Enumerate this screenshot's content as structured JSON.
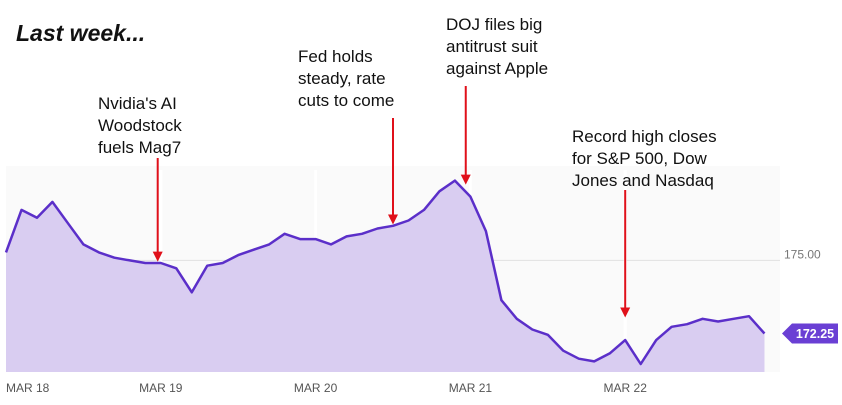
{
  "chart_data": {
    "type": "area",
    "title": "Last week...",
    "x_ticks": [
      "MAR 18",
      "MAR 19",
      "MAR 20",
      "MAR 21",
      "MAR 22"
    ],
    "y_ticks": [
      175.0
    ],
    "y_tick_labels": [
      "175.00"
    ],
    "ylim": [
      170.8,
      178.4
    ],
    "grid": true,
    "last_value": 172.25,
    "last_value_label": "172.25",
    "colors": {
      "line": "#5b2fc9",
      "fill": "#d9cdf1",
      "badge": "#6a3fd4",
      "annotation_arrow": "#e0101a",
      "grid": "#e1e1e1"
    },
    "series": [
      {
        "x": [
          0,
          0.1,
          0.2,
          0.3,
          0.4,
          0.5,
          0.6,
          0.7,
          0.8,
          0.9,
          1.0,
          1.1,
          1.2,
          1.3,
          1.4,
          1.5,
          1.6,
          1.7,
          1.8,
          1.9,
          2.0,
          2.1,
          2.2,
          2.3,
          2.4,
          2.5,
          2.6,
          2.7,
          2.8,
          2.9,
          3.0,
          3.1,
          3.2,
          3.3,
          3.4,
          3.5,
          3.6,
          3.7,
          3.8,
          3.9,
          4.0,
          4.1,
          4.2,
          4.3,
          4.4,
          4.5,
          4.6,
          4.7,
          4.8,
          4.9
        ],
        "y": [
          175.3,
          176.9,
          176.6,
          177.2,
          176.4,
          175.6,
          175.3,
          175.1,
          175.0,
          174.9,
          174.9,
          174.7,
          173.8,
          174.8,
          174.9,
          175.2,
          175.4,
          175.6,
          176.0,
          175.8,
          175.8,
          175.6,
          175.9,
          176.0,
          176.2,
          176.3,
          176.5,
          176.9,
          177.6,
          178.0,
          177.4,
          176.1,
          173.5,
          172.8,
          172.4,
          172.2,
          171.6,
          171.3,
          171.2,
          171.5,
          172.0,
          171.1,
          172.0,
          172.5,
          172.6,
          172.8,
          172.7,
          172.8,
          172.9,
          172.25
        ]
      }
    ],
    "annotations": [
      {
        "lines": [
          "Nvidia's AI",
          "Woodstock",
          "fuels Mag7"
        ],
        "x": 0.98,
        "y": 174.8
      },
      {
        "lines": [
          "Fed holds",
          "steady, rate",
          "cuts to come"
        ],
        "x": 2.5,
        "y": 176.2
      },
      {
        "lines": [
          "DOJ files big",
          "antitrust suit",
          "against Apple"
        ],
        "x": 2.97,
        "y": 177.7
      },
      {
        "lines": [
          "Record high closes",
          "for S&P 500, Dow",
          "Jones and Nasdaq"
        ],
        "x": 4.0,
        "y": 172.7
      }
    ]
  }
}
